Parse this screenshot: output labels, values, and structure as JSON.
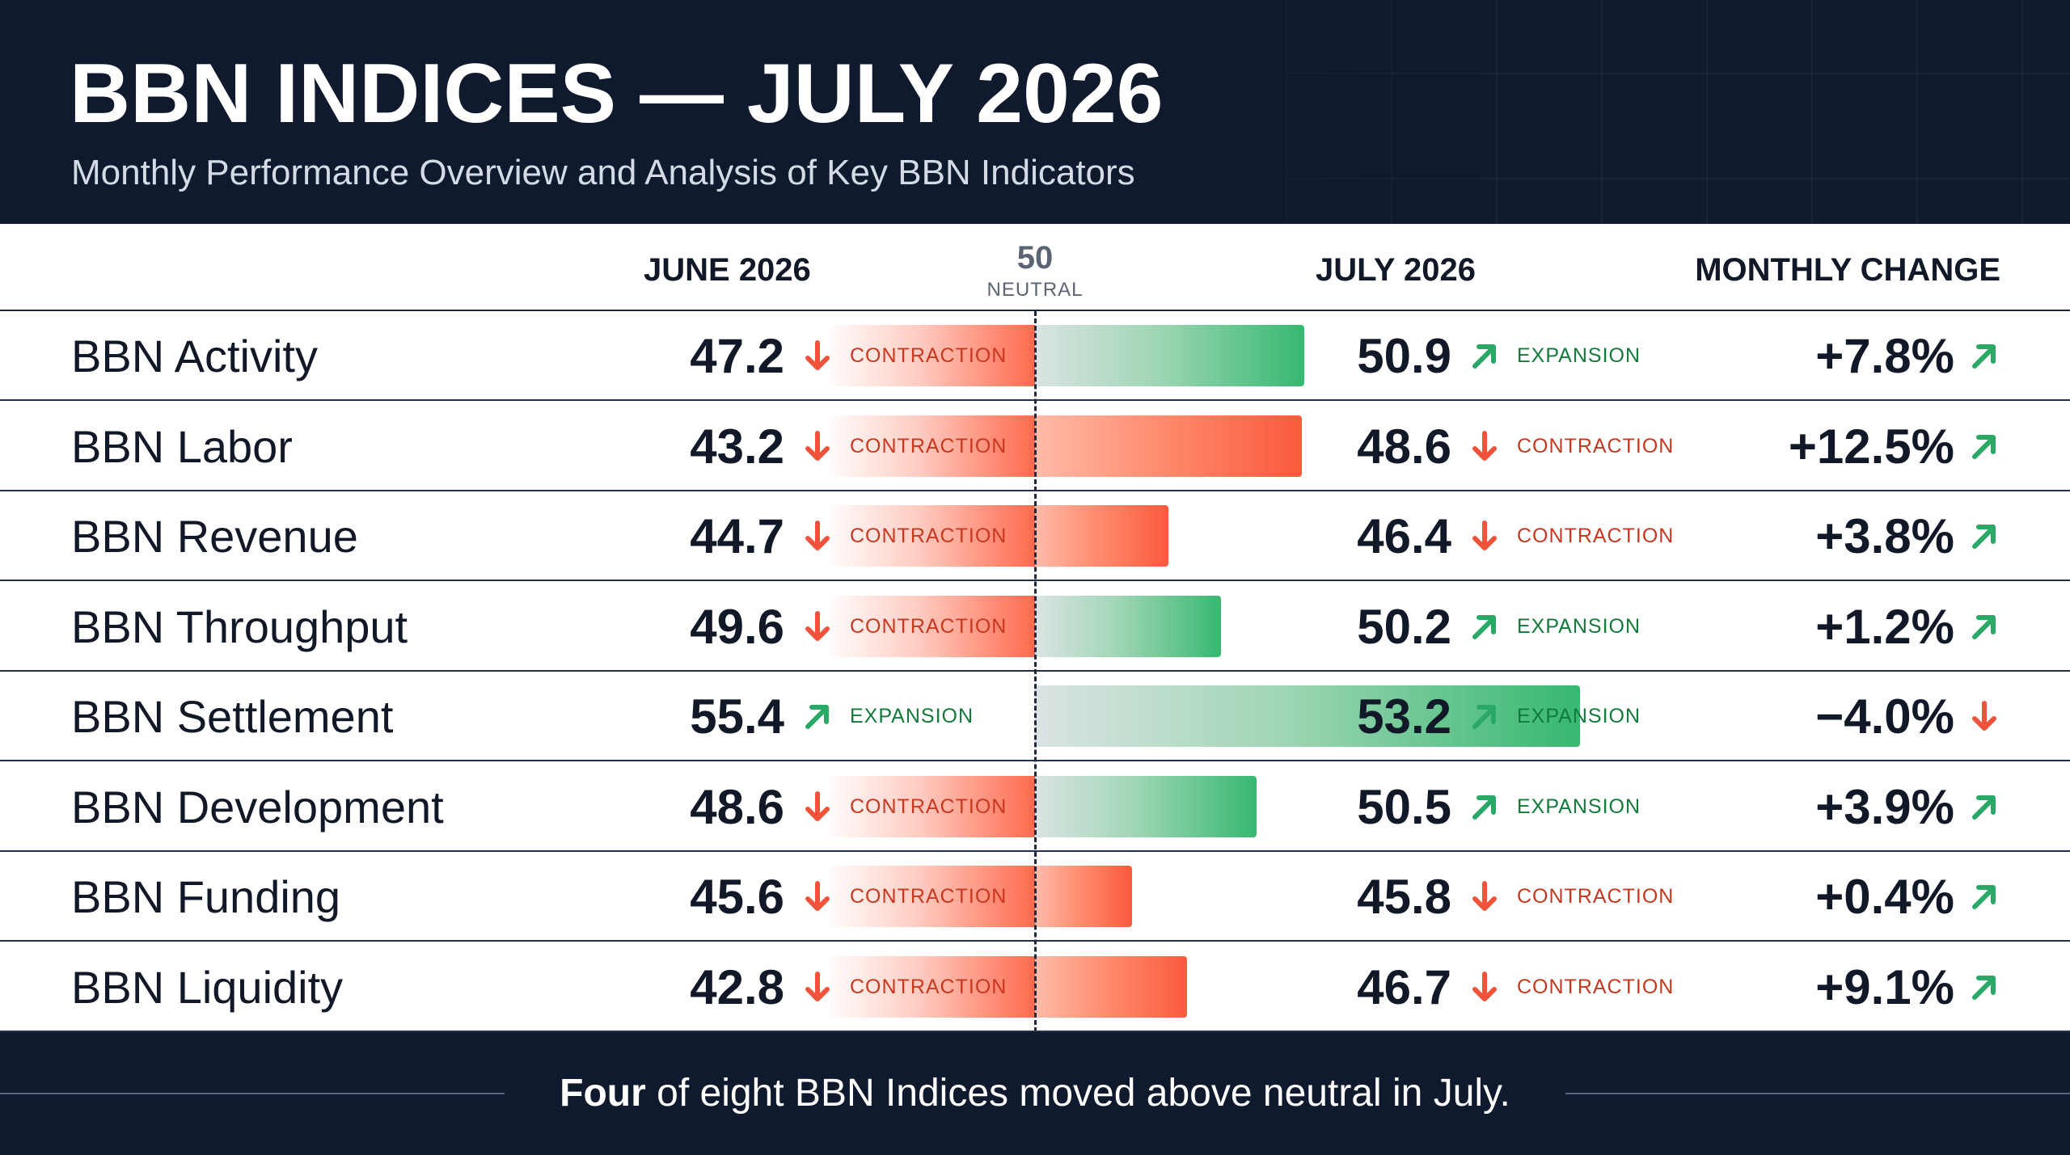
{
  "header": {
    "title": "BBN INDICES — JULY 2026",
    "subtitle": "Monthly Performance Overview and Analysis of Key BBN Indicators"
  },
  "columns": {
    "june": "JUNE 2026",
    "neutral_value": "50",
    "neutral_label": "NEUTRAL",
    "july": "JULY 2026",
    "change": "MONTHLY CHANGE"
  },
  "colors": {
    "contraction": "#ff6a4d",
    "expansion": "#37b870",
    "navy": "#0f1a2e"
  },
  "footer": {
    "bold": "Four",
    "rest": " of eight BBN Indices moved above neutral in July."
  },
  "chart_data": {
    "type": "bar",
    "title": "BBN INDICES — JULY 2026",
    "neutral": 50,
    "rows": [
      {
        "name": "BBN Activity",
        "june": 47.2,
        "june_status": "CONTRACTION",
        "july": 50.9,
        "july_status": "EXPANSION",
        "change": "+7.8%"
      },
      {
        "name": "BBN Labor",
        "june": 43.2,
        "june_status": "CONTRACTION",
        "july": 48.6,
        "july_status": "CONTRACTION",
        "change": "+12.5%"
      },
      {
        "name": "BBN Revenue",
        "june": 44.7,
        "june_status": "CONTRACTION",
        "july": 46.4,
        "july_status": "CONTRACTION",
        "change": "+3.8%"
      },
      {
        "name": "BBN Throughput",
        "june": 49.6,
        "june_status": "CONTRACTION",
        "july": 50.2,
        "july_status": "EXPANSION",
        "change": "+1.2%"
      },
      {
        "name": "BBN Settlement",
        "june": 55.4,
        "june_status": "EXPANSION",
        "july": 53.2,
        "july_status": "EXPANSION",
        "change": "−4.0%"
      },
      {
        "name": "BBN Development",
        "june": 48.6,
        "june_status": "CONTRACTION",
        "july": 50.5,
        "july_status": "EXPANSION",
        "change": "+3.9%"
      },
      {
        "name": "BBN Funding",
        "june": 45.6,
        "june_status": "CONTRACTION",
        "july": 45.8,
        "july_status": "CONTRACTION",
        "change": "+0.4%"
      },
      {
        "name": "BBN Liquidity",
        "june": 42.8,
        "june_status": "CONTRACTION",
        "july": 46.7,
        "july_status": "CONTRACTION",
        "change": "+9.1%"
      }
    ]
  }
}
